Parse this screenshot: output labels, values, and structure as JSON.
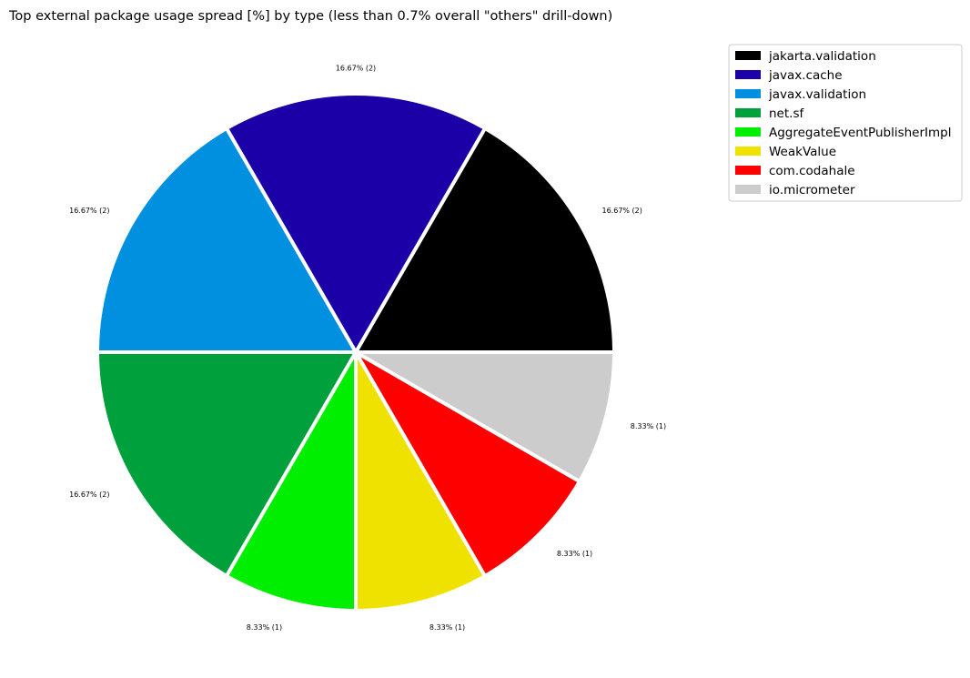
{
  "chart_data": {
    "type": "pie",
    "title": "Top external package usage spread [%] by type (less than 0.7% overall \"others\" drill-down)",
    "start_angle_deg": 0,
    "direction": "counterclockwise",
    "legend_position": "upper-right-outside",
    "slices": [
      {
        "name": "jakarta.validation",
        "count": 2,
        "percent": 16.67,
        "label": "16.67% (2)",
        "color": "#000000"
      },
      {
        "name": "javax.cache",
        "count": 2,
        "percent": 16.67,
        "label": "16.67% (2)",
        "color": "#1a00a6"
      },
      {
        "name": "javax.validation",
        "count": 2,
        "percent": 16.67,
        "label": "16.67% (2)",
        "color": "#0090df"
      },
      {
        "name": "net.sf",
        "count": 2,
        "percent": 16.67,
        "label": "16.67% (2)",
        "color": "#00a03c"
      },
      {
        "name": "AggregateEventPublisherImpl",
        "count": 1,
        "percent": 8.33,
        "label": "8.33% (1)",
        "color": "#00ee00"
      },
      {
        "name": "WeakValue",
        "count": 1,
        "percent": 8.33,
        "label": "8.33% (1)",
        "color": "#f0e200"
      },
      {
        "name": "com.codahale",
        "count": 1,
        "percent": 8.33,
        "label": "8.33% (1)",
        "color": "#ff0000"
      },
      {
        "name": "io.micrometer",
        "count": 1,
        "percent": 8.33,
        "label": "8.33% (1)",
        "color": "#cccccc"
      }
    ]
  }
}
